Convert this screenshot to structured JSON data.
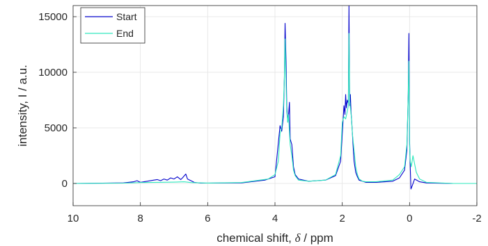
{
  "chart_data": {
    "type": "line",
    "title": "",
    "xlabel_prefix": "chemical shift, ",
    "xlabel_symbol": "δ",
    "xlabel_suffix": " / ppm",
    "ylabel": "intensity, I / a.u.",
    "xlim": [
      10,
      -2
    ],
    "ylim": [
      -2000,
      16000
    ],
    "xticks": [
      10,
      8,
      6,
      4,
      2,
      0,
      -2
    ],
    "yticks": [
      0,
      5000,
      10000,
      15000
    ],
    "grid": true,
    "legend_position": "top-left",
    "series": [
      {
        "name": "Start",
        "color": "#0000cc",
        "x": [
          10,
          8.5,
          8.2,
          8.1,
          8.0,
          7.8,
          7.6,
          7.5,
          7.4,
          7.3,
          7.2,
          7.1,
          7.0,
          6.9,
          6.8,
          6.75,
          6.65,
          6.6,
          6.5,
          6.4,
          6.2,
          5.0,
          4.3,
          4.0,
          3.85,
          3.8,
          3.75,
          3.72,
          3.7,
          3.67,
          3.65,
          3.62,
          3.6,
          3.57,
          3.55,
          3.5,
          3.45,
          3.4,
          3.3,
          3.0,
          2.5,
          2.2,
          2.05,
          2.0,
          1.95,
          1.92,
          1.9,
          1.88,
          1.85,
          1.82,
          1.8,
          1.78,
          1.76,
          1.74,
          1.72,
          1.7,
          1.68,
          1.65,
          1.6,
          1.55,
          1.5,
          1.4,
          1.3,
          1.0,
          0.5,
          0.3,
          0.15,
          0.08,
          0.04,
          0.02,
          0.0,
          -0.02,
          -0.04,
          -0.08,
          -0.15,
          -0.3,
          -0.5,
          -1.3,
          -2
        ],
        "y": [
          0,
          50,
          150,
          250,
          100,
          200,
          300,
          350,
          250,
          400,
          300,
          500,
          400,
          600,
          350,
          500,
          850,
          400,
          250,
          100,
          30,
          50,
          300,
          600,
          5200,
          4700,
          6000,
          9500,
          14400,
          11000,
          7000,
          5500,
          6000,
          7300,
          4000,
          3500,
          1500,
          800,
          400,
          200,
          300,
          700,
          2000,
          4500,
          7000,
          6200,
          8000,
          6800,
          7500,
          7200,
          16000,
          7000,
          8000,
          6500,
          5600,
          4500,
          3500,
          2000,
          1000,
          600,
          300,
          200,
          100,
          100,
          200,
          500,
          1200,
          3000,
          8000,
          13500,
          4000,
          1500,
          -500,
          -200,
          400,
          150,
          50,
          0,
          0
        ]
      },
      {
        "name": "End",
        "color": "#2de8bd",
        "x": [
          10,
          8.5,
          8.0,
          7.5,
          7.0,
          6.7,
          6.5,
          6.0,
          5.0,
          4.2,
          4.0,
          3.9,
          3.85,
          3.8,
          3.75,
          3.72,
          3.7,
          3.67,
          3.65,
          3.62,
          3.6,
          3.55,
          3.5,
          3.45,
          3.4,
          3.3,
          3.0,
          2.5,
          2.2,
          2.05,
          2.0,
          1.95,
          1.9,
          1.85,
          1.82,
          1.8,
          1.78,
          1.76,
          1.73,
          1.7,
          1.65,
          1.6,
          1.55,
          1.5,
          1.4,
          1.3,
          1.0,
          0.5,
          0.3,
          0.15,
          0.08,
          0.04,
          0.02,
          0.0,
          -0.02,
          -0.05,
          -0.1,
          -0.2,
          -0.3,
          -0.5,
          -1.3,
          -2
        ],
        "y": [
          0,
          30,
          80,
          100,
          120,
          150,
          80,
          40,
          80,
          400,
          800,
          2000,
          4500,
          5000,
          7000,
          9500,
          13000,
          9000,
          6500,
          5500,
          6200,
          3500,
          2500,
          1200,
          700,
          300,
          200,
          300,
          800,
          2500,
          5500,
          6000,
          5800,
          6500,
          7000,
          13500,
          7500,
          6800,
          6000,
          4500,
          3000,
          1500,
          800,
          400,
          200,
          150,
          150,
          300,
          800,
          1500,
          3500,
          8000,
          11000,
          3500,
          2000,
          1500,
          2500,
          1000,
          400,
          100,
          0,
          0
        ]
      }
    ]
  }
}
